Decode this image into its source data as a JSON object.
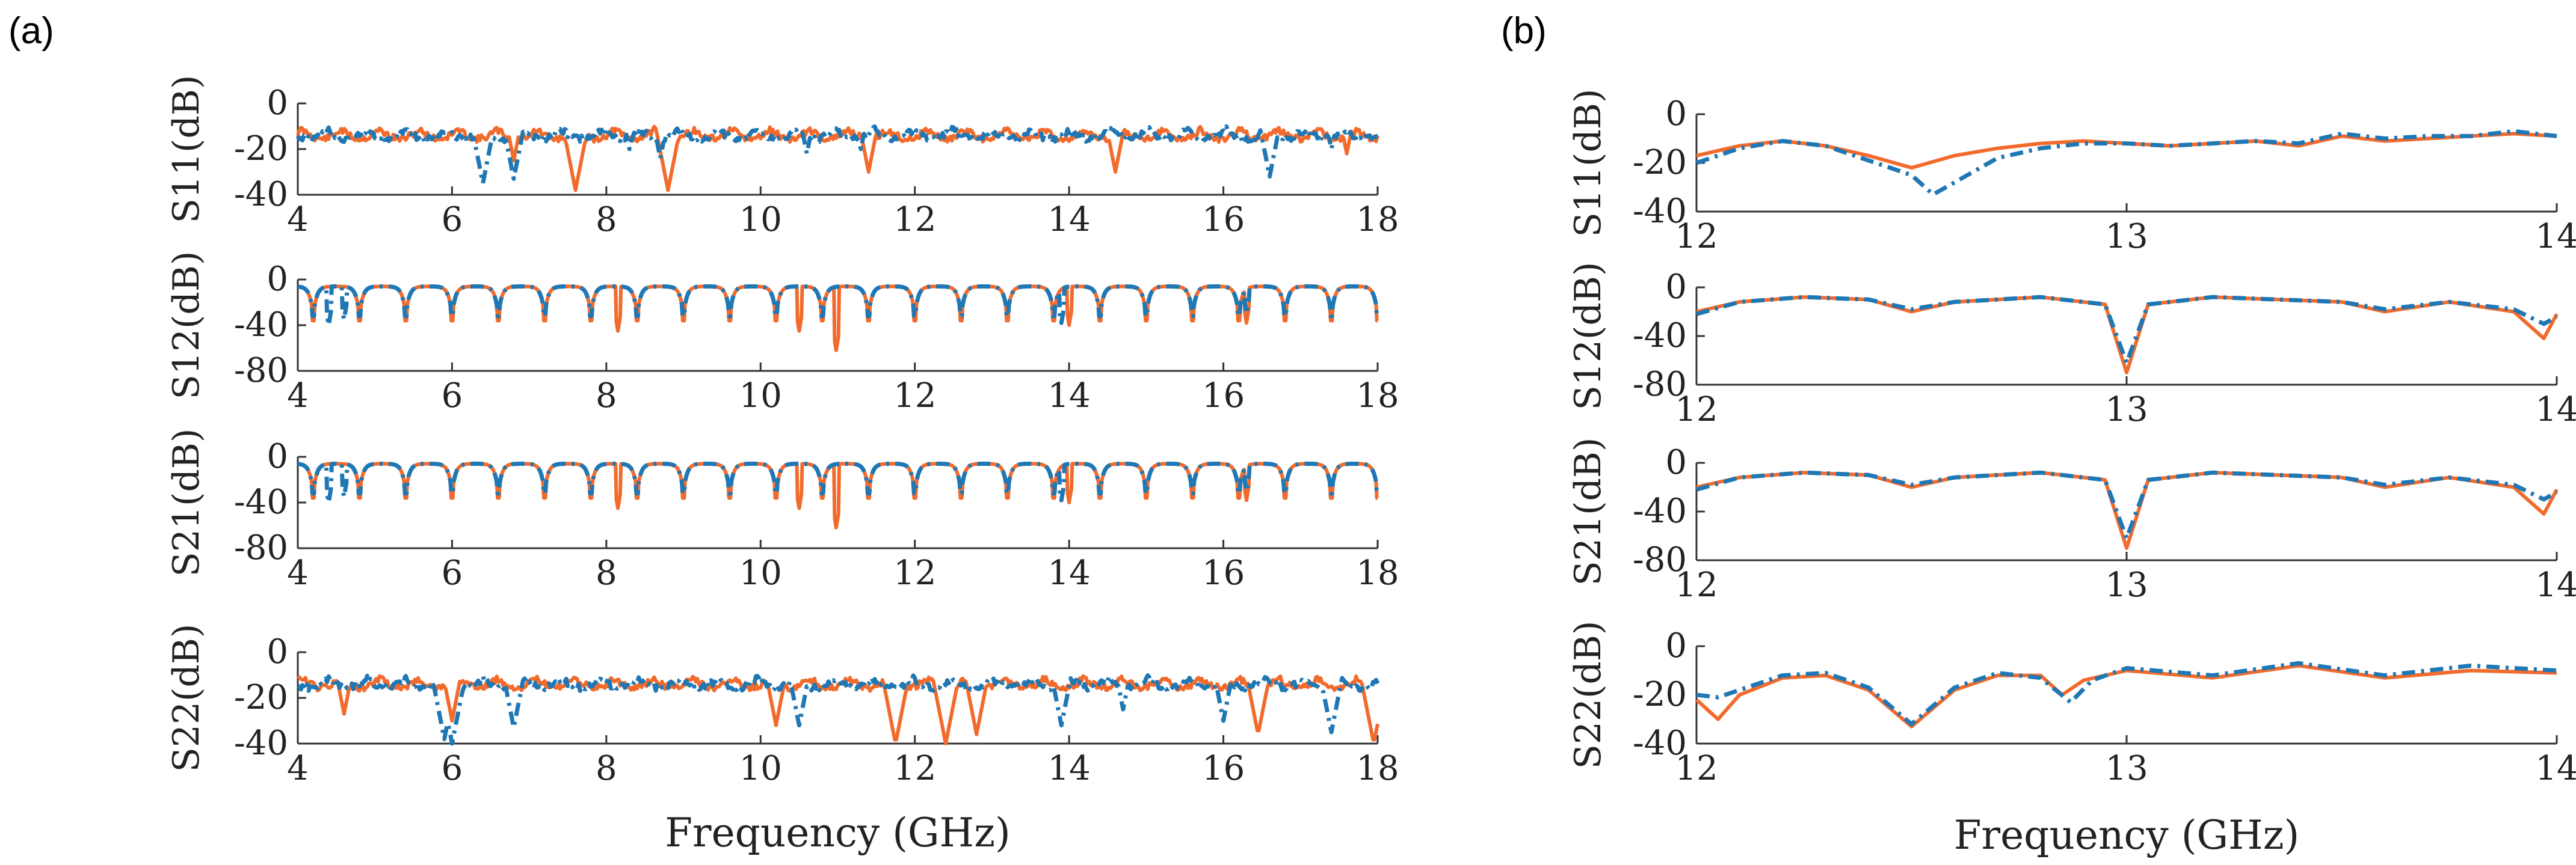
{
  "figure": {
    "panel_labels": [
      "(a)",
      "(b)"
    ]
  },
  "colors": {
    "series_measured": "#f26b2d",
    "series_simulated": "#1f77b4"
  },
  "chart_data": [
    {
      "type": "line",
      "panel": "(a)",
      "xlabel": "Frequency (GHz)",
      "xlim": [
        4,
        18
      ],
      "xticks": [
        4,
        6,
        8,
        10,
        12,
        14,
        16,
        18
      ],
      "subplots": [
        {
          "ylabel": "S11(dB)",
          "ylim": [
            -40,
            0
          ],
          "yticks": [
            0,
            -20,
            -40
          ],
          "kind": "reflection",
          "seed": 11,
          "dips_orange": [
            [
              6.8,
              -25
            ],
            [
              7.6,
              -38
            ],
            [
              8.8,
              -38
            ],
            [
              11.4,
              -30
            ],
            [
              14.6,
              -30
            ],
            [
              17.6,
              -22
            ]
          ],
          "dips_blue": [
            [
              6.4,
              -35
            ],
            [
              6.8,
              -33
            ],
            [
              8.3,
              -20
            ],
            [
              8.7,
              -24
            ],
            [
              10.6,
              -22
            ],
            [
              11.3,
              -20
            ],
            [
              16.6,
              -32
            ],
            [
              17.4,
              -20
            ]
          ]
        },
        {
          "ylabel": "S12(dB)",
          "ylim": [
            -80,
            0
          ],
          "yticks": [
            0,
            -40,
            -80
          ],
          "kind": "transmission",
          "period": 0.6,
          "start": 4.2,
          "dip_depth": -40,
          "deep_orange": [
            [
              8.15,
              -45
            ],
            [
              10.5,
              -45
            ],
            [
              10.98,
              -62
            ],
            [
              14.0,
              -40
            ],
            [
              16.3,
              -38
            ]
          ],
          "deep_blue": [
            [
              4.4,
              -40
            ],
            [
              4.6,
              -35
            ],
            [
              13.9,
              -38
            ],
            [
              16.3,
              -30
            ]
          ]
        },
        {
          "ylabel": "S21(dB)",
          "ylim": [
            -80,
            0
          ],
          "yticks": [
            0,
            -40,
            -80
          ],
          "kind": "transmission",
          "period": 0.6,
          "start": 4.2,
          "dip_depth": -40,
          "deep_orange": [
            [
              8.15,
              -45
            ],
            [
              10.5,
              -45
            ],
            [
              10.98,
              -62
            ],
            [
              14.0,
              -40
            ],
            [
              16.3,
              -38
            ]
          ],
          "deep_blue": [
            [
              4.4,
              -40
            ],
            [
              4.6,
              -35
            ],
            [
              13.9,
              -38
            ],
            [
              16.3,
              -30
            ]
          ]
        },
        {
          "ylabel": "S22(dB)",
          "ylim": [
            -40,
            0
          ],
          "yticks": [
            0,
            -20,
            -40
          ],
          "kind": "reflection",
          "seed": 22,
          "dips_orange": [
            [
              4.6,
              -27
            ],
            [
              6.0,
              -30
            ],
            [
              10.2,
              -32
            ],
            [
              11.75,
              -40
            ],
            [
              12.4,
              -40
            ],
            [
              12.8,
              -36
            ],
            [
              16.45,
              -36
            ],
            [
              17.95,
              -40
            ]
          ],
          "dips_blue": [
            [
              5.9,
              -38
            ],
            [
              6.0,
              -40
            ],
            [
              6.8,
              -33
            ],
            [
              10.5,
              -32
            ],
            [
              13.9,
              -32
            ],
            [
              14.7,
              -25
            ],
            [
              16.0,
              -30
            ],
            [
              17.4,
              -35
            ]
          ]
        }
      ]
    },
    {
      "type": "line",
      "panel": "(b)",
      "xlabel": "Frequency (GHz)",
      "xlim": [
        12,
        14
      ],
      "xticks": [
        12,
        13,
        14
      ],
      "subplots": [
        {
          "ylabel": "S11(dB)",
          "ylim": [
            -40,
            0
          ],
          "yticks": [
            0,
            -20,
            -40
          ],
          "orange": [
            [
              12.0,
              -17
            ],
            [
              12.1,
              -13
            ],
            [
              12.2,
              -11
            ],
            [
              12.3,
              -13
            ],
            [
              12.4,
              -17
            ],
            [
              12.5,
              -22
            ],
            [
              12.6,
              -17
            ],
            [
              12.7,
              -14
            ],
            [
              12.8,
              -12
            ],
            [
              12.9,
              -11
            ],
            [
              13.0,
              -12
            ],
            [
              13.1,
              -13
            ],
            [
              13.2,
              -12
            ],
            [
              13.3,
              -11
            ],
            [
              13.4,
              -13
            ],
            [
              13.5,
              -9
            ],
            [
              13.6,
              -11
            ],
            [
              13.7,
              -10
            ],
            [
              13.8,
              -9
            ],
            [
              13.9,
              -8
            ],
            [
              14.0,
              -9
            ]
          ],
          "blue": [
            [
              12.0,
              -20
            ],
            [
              12.1,
              -14
            ],
            [
              12.2,
              -11
            ],
            [
              12.3,
              -13
            ],
            [
              12.4,
              -19
            ],
            [
              12.5,
              -25
            ],
            [
              12.55,
              -33
            ],
            [
              12.6,
              -28
            ],
            [
              12.7,
              -18
            ],
            [
              12.8,
              -14
            ],
            [
              12.9,
              -12
            ],
            [
              13.0,
              -12
            ],
            [
              13.1,
              -13
            ],
            [
              13.2,
              -12
            ],
            [
              13.3,
              -11
            ],
            [
              13.4,
              -12
            ],
            [
              13.5,
              -8
            ],
            [
              13.6,
              -10
            ],
            [
              13.7,
              -9
            ],
            [
              13.8,
              -9
            ],
            [
              13.9,
              -7
            ],
            [
              14.0,
              -9
            ]
          ]
        },
        {
          "ylabel": "S12(dB)",
          "ylim": [
            -80,
            0
          ],
          "yticks": [
            0,
            -40,
            -80
          ],
          "orange": [
            [
              12.0,
              -20
            ],
            [
              12.1,
              -12
            ],
            [
              12.25,
              -8
            ],
            [
              12.4,
              -10
            ],
            [
              12.5,
              -20
            ],
            [
              12.6,
              -12
            ],
            [
              12.8,
              -8
            ],
            [
              12.95,
              -14
            ],
            [
              13.0,
              -70
            ],
            [
              13.05,
              -14
            ],
            [
              13.2,
              -8
            ],
            [
              13.5,
              -12
            ],
            [
              13.6,
              -20
            ],
            [
              13.75,
              -12
            ],
            [
              13.9,
              -20
            ],
            [
              13.97,
              -42
            ],
            [
              14.0,
              -22
            ]
          ],
          "blue": [
            [
              12.0,
              -22
            ],
            [
              12.1,
              -12
            ],
            [
              12.25,
              -8
            ],
            [
              12.4,
              -10
            ],
            [
              12.5,
              -18
            ],
            [
              12.6,
              -12
            ],
            [
              12.8,
              -8
            ],
            [
              12.95,
              -14
            ],
            [
              13.0,
              -62
            ],
            [
              13.05,
              -14
            ],
            [
              13.2,
              -8
            ],
            [
              13.5,
              -12
            ],
            [
              13.6,
              -18
            ],
            [
              13.75,
              -12
            ],
            [
              13.9,
              -18
            ],
            [
              13.97,
              -30
            ],
            [
              14.0,
              -24
            ]
          ]
        },
        {
          "ylabel": "S21(dB)",
          "ylim": [
            -80,
            0
          ],
          "yticks": [
            0,
            -40,
            -80
          ],
          "orange": [
            [
              12.0,
              -20
            ],
            [
              12.1,
              -12
            ],
            [
              12.25,
              -8
            ],
            [
              12.4,
              -10
            ],
            [
              12.5,
              -20
            ],
            [
              12.6,
              -12
            ],
            [
              12.8,
              -8
            ],
            [
              12.95,
              -14
            ],
            [
              13.0,
              -70
            ],
            [
              13.05,
              -14
            ],
            [
              13.2,
              -8
            ],
            [
              13.5,
              -12
            ],
            [
              13.6,
              -20
            ],
            [
              13.75,
              -12
            ],
            [
              13.9,
              -20
            ],
            [
              13.97,
              -42
            ],
            [
              14.0,
              -22
            ]
          ],
          "blue": [
            [
              12.0,
              -22
            ],
            [
              12.1,
              -12
            ],
            [
              12.25,
              -8
            ],
            [
              12.4,
              -10
            ],
            [
              12.5,
              -18
            ],
            [
              12.6,
              -12
            ],
            [
              12.8,
              -8
            ],
            [
              12.95,
              -14
            ],
            [
              13.0,
              -62
            ],
            [
              13.05,
              -14
            ],
            [
              13.2,
              -8
            ],
            [
              13.5,
              -12
            ],
            [
              13.6,
              -18
            ],
            [
              13.75,
              -12
            ],
            [
              13.9,
              -18
            ],
            [
              13.97,
              -30
            ],
            [
              14.0,
              -24
            ]
          ]
        },
        {
          "ylabel": "S22(dB)",
          "ylim": [
            -40,
            0
          ],
          "yticks": [
            0,
            -20,
            -40
          ],
          "orange": [
            [
              12.0,
              -22
            ],
            [
              12.05,
              -30
            ],
            [
              12.1,
              -20
            ],
            [
              12.2,
              -13
            ],
            [
              12.3,
              -12
            ],
            [
              12.4,
              -18
            ],
            [
              12.5,
              -33
            ],
            [
              12.6,
              -18
            ],
            [
              12.7,
              -12
            ],
            [
              12.8,
              -12
            ],
            [
              12.85,
              -20
            ],
            [
              12.9,
              -14
            ],
            [
              13.0,
              -10
            ],
            [
              13.2,
              -13
            ],
            [
              13.4,
              -8
            ],
            [
              13.6,
              -13
            ],
            [
              13.8,
              -10
            ],
            [
              14.0,
              -11
            ]
          ],
          "blue": [
            [
              12.0,
              -20
            ],
            [
              12.05,
              -21
            ],
            [
              12.1,
              -18
            ],
            [
              12.2,
              -12
            ],
            [
              12.3,
              -11
            ],
            [
              12.4,
              -17
            ],
            [
              12.5,
              -32
            ],
            [
              12.6,
              -17
            ],
            [
              12.7,
              -11
            ],
            [
              12.8,
              -13
            ],
            [
              12.87,
              -23
            ],
            [
              12.92,
              -14
            ],
            [
              13.0,
              -9
            ],
            [
              13.2,
              -12
            ],
            [
              13.4,
              -7
            ],
            [
              13.6,
              -12
            ],
            [
              13.8,
              -8
            ],
            [
              14.0,
              -10
            ]
          ]
        }
      ]
    }
  ]
}
